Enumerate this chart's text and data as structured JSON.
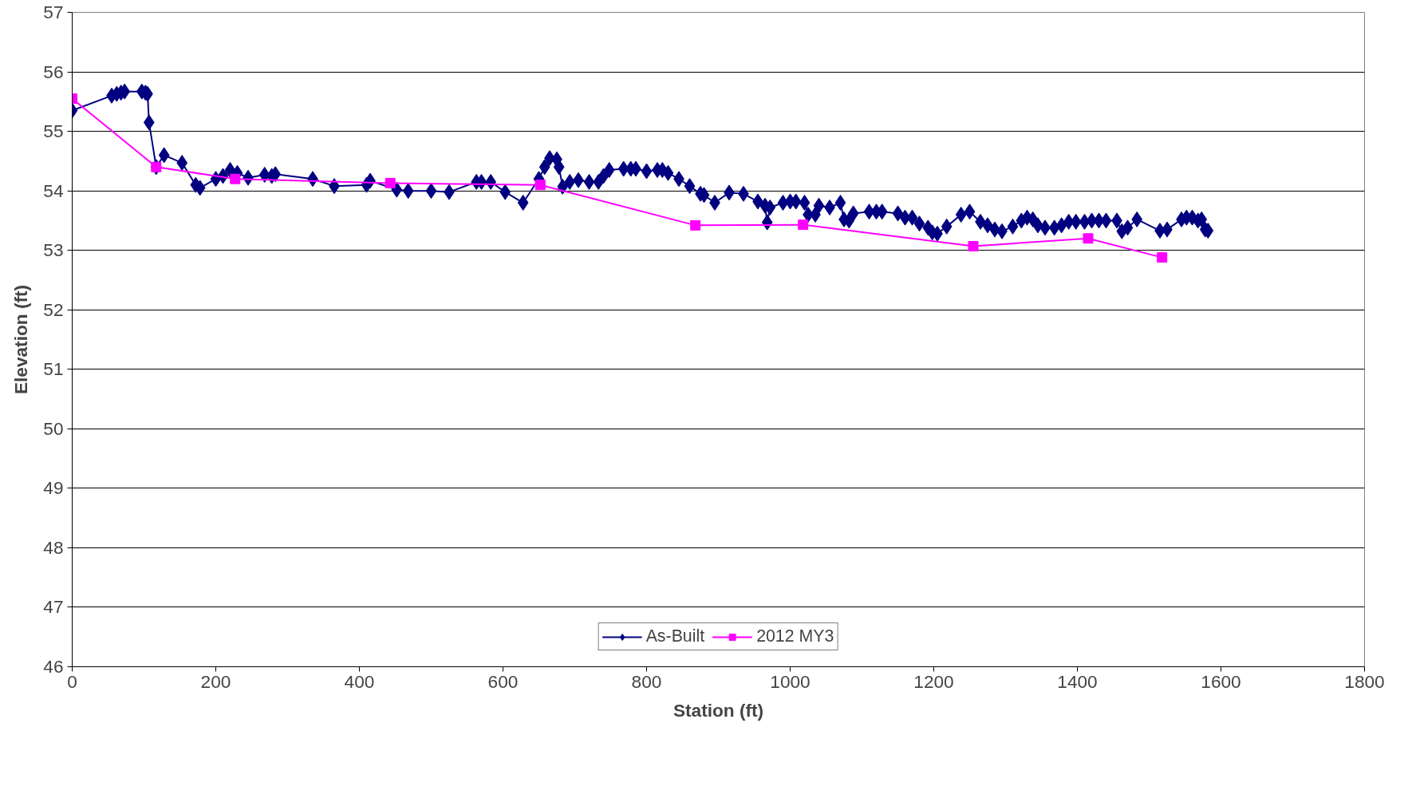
{
  "chart_data": {
    "type": "line",
    "xlabel": "Station (ft)",
    "ylabel": "Elevation (ft)",
    "xlim": [
      0,
      1800
    ],
    "xticks": [
      0,
      200,
      400,
      600,
      800,
      1000,
      1200,
      1400,
      1600,
      1800
    ],
    "ylim": [
      46,
      57
    ],
    "yticks": [
      46,
      47,
      48,
      49,
      50,
      51,
      52,
      53,
      54,
      55,
      56,
      57
    ],
    "grid": "y",
    "legend": "bottom",
    "line_style": "solid",
    "series": [
      {
        "name": "As-Built",
        "color": "#000080",
        "marker": "diamond",
        "x": [
          0,
          55,
          62,
          68,
          73,
          97,
          102,
          105,
          107,
          117,
          128,
          153,
          172,
          178,
          200,
          210,
          220,
          230,
          245,
          268,
          278,
          283,
          335,
          365,
          410,
          415,
          452,
          468,
          500,
          525,
          563,
          570,
          583,
          603,
          628,
          650,
          658,
          665,
          675,
          678,
          683,
          693,
          705,
          720,
          733,
          740,
          748,
          768,
          778,
          785,
          800,
          815,
          822,
          830,
          845,
          860,
          875,
          880,
          895,
          915,
          935,
          955,
          965,
          968,
          972,
          990,
          1000,
          1008,
          1020,
          1025,
          1035,
          1040,
          1055,
          1070,
          1075,
          1082,
          1088,
          1110,
          1120,
          1128,
          1150,
          1160,
          1170,
          1180,
          1192,
          1198,
          1205,
          1218,
          1238,
          1250,
          1265,
          1275,
          1285,
          1295,
          1310,
          1322,
          1330,
          1338,
          1345,
          1355,
          1368,
          1378,
          1388,
          1398,
          1410,
          1420,
          1430,
          1440,
          1455,
          1462,
          1470,
          1483,
          1515,
          1525,
          1545,
          1552,
          1560,
          1568,
          1573,
          1578,
          1582
        ],
        "values": [
          55.35,
          55.6,
          55.63,
          55.65,
          55.67,
          55.67,
          55.65,
          55.63,
          55.15,
          54.4,
          54.6,
          54.47,
          54.1,
          54.05,
          54.2,
          54.25,
          54.35,
          54.3,
          54.22,
          54.27,
          54.25,
          54.28,
          54.2,
          54.08,
          54.1,
          54.17,
          54.02,
          54.0,
          54.0,
          53.98,
          54.15,
          54.15,
          54.15,
          53.98,
          53.8,
          54.2,
          54.4,
          54.55,
          54.53,
          54.4,
          54.07,
          54.15,
          54.18,
          54.15,
          54.15,
          54.25,
          54.35,
          54.37,
          54.37,
          54.37,
          54.33,
          54.35,
          54.35,
          54.3,
          54.2,
          54.08,
          53.95,
          53.93,
          53.8,
          53.97,
          53.95,
          53.82,
          53.75,
          53.47,
          53.72,
          53.8,
          53.82,
          53.82,
          53.8,
          53.6,
          53.6,
          53.75,
          53.72,
          53.8,
          53.52,
          53.5,
          53.62,
          53.65,
          53.65,
          53.65,
          53.62,
          53.55,
          53.55,
          53.45,
          53.38,
          53.3,
          53.28,
          53.4,
          53.6,
          53.65,
          53.48,
          53.42,
          53.35,
          53.32,
          53.4,
          53.5,
          53.55,
          53.52,
          53.42,
          53.38,
          53.38,
          53.42,
          53.48,
          53.48,
          53.48,
          53.5,
          53.5,
          53.5,
          53.5,
          53.32,
          53.38,
          53.52,
          53.33,
          53.35,
          53.52,
          53.55,
          53.55,
          53.5,
          53.52,
          53.35,
          53.33
        ]
      },
      {
        "name": "2012 MY3",
        "color": "#ff00ff",
        "marker": "square",
        "x": [
          0,
          117,
          227,
          443,
          652,
          868,
          1018,
          1255,
          1415,
          1518
        ],
        "values": [
          55.55,
          54.4,
          54.2,
          54.13,
          54.1,
          53.42,
          53.43,
          53.07,
          53.2,
          52.88
        ]
      }
    ]
  }
}
